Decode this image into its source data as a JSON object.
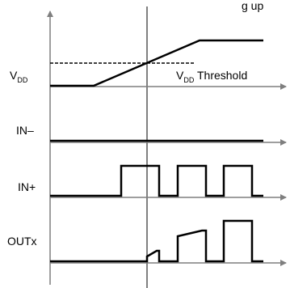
{
  "diagram": {
    "title_partial": "g up",
    "labels": {
      "vdd_main": "V",
      "vdd_sub": "DD",
      "threshold_main": "V",
      "threshold_sub": "DD",
      "threshold_suffix": " Threshold",
      "in_minus": "IN–",
      "in_plus": "IN+",
      "outx": "OUTx"
    },
    "colors": {
      "stroke": "#000000",
      "axis": "#7f7f7f"
    }
  }
}
